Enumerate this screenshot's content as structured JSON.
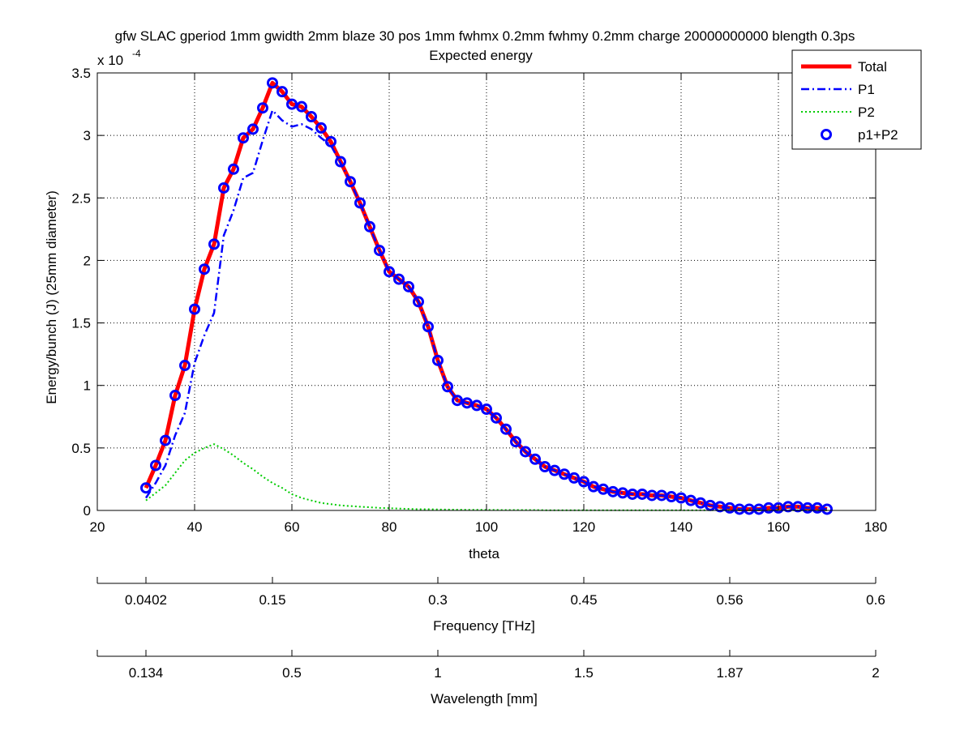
{
  "chart_data": {
    "type": "line",
    "title": "gfw SLAC gperiod 1mm gwidth 2mm blaze 30 pos 1mm fwhmx 0.2mm fwhmy 0.2mm charge 20000000000 blength 0.3ps",
    "subtitle": "Expected energy",
    "xlabel": "theta",
    "ylabel": "Energy/bunch (J) (25mm diameter)",
    "y_multiplier_base": "x 10",
    "y_multiplier_exponent": "-4",
    "xlim": [
      20,
      180
    ],
    "ylim": [
      0,
      3.5
    ],
    "xticks": [
      "20",
      "40",
      "60",
      "80",
      "100",
      "120",
      "140",
      "160",
      "180"
    ],
    "yticks": [
      "0",
      "0.5",
      "1",
      "1.5",
      "2",
      "2.5",
      "3",
      "3.5"
    ],
    "grid": true,
    "legend_position": "top-right",
    "colors": {
      "total": "#ff0000",
      "p1": "#0000ff",
      "p2": "#00cc00",
      "p1p2": "#0000ff",
      "axes": "#000000",
      "grid": "#000000"
    },
    "x": [
      30,
      32,
      34,
      36,
      38,
      40,
      42,
      44,
      46,
      48,
      50,
      52,
      54,
      56,
      58,
      60,
      62,
      64,
      66,
      68,
      70,
      72,
      74,
      76,
      78,
      80,
      82,
      84,
      86,
      88,
      90,
      92,
      94,
      96,
      98,
      100,
      102,
      104,
      106,
      108,
      110,
      112,
      114,
      116,
      118,
      120,
      122,
      124,
      126,
      128,
      130,
      132,
      134,
      136,
      138,
      140,
      142,
      144,
      146,
      148,
      150,
      152,
      154,
      156,
      158,
      160,
      162,
      164,
      166,
      168,
      170
    ],
    "series": [
      {
        "name": "Total",
        "style": "solid",
        "values": [
          0.18,
          0.36,
          0.56,
          0.92,
          1.16,
          1.61,
          1.93,
          2.13,
          2.58,
          2.73,
          2.98,
          3.05,
          3.22,
          3.42,
          3.35,
          3.25,
          3.23,
          3.15,
          3.06,
          2.95,
          2.79,
          2.63,
          2.46,
          2.27,
          2.08,
          1.91,
          1.85,
          1.79,
          1.67,
          1.47,
          1.2,
          0.99,
          0.88,
          0.86,
          0.84,
          0.81,
          0.74,
          0.65,
          0.55,
          0.47,
          0.41,
          0.35,
          0.32,
          0.29,
          0.26,
          0.23,
          0.19,
          0.17,
          0.15,
          0.14,
          0.13,
          0.13,
          0.12,
          0.12,
          0.11,
          0.1,
          0.08,
          0.06,
          0.04,
          0.03,
          0.02,
          0.01,
          0.01,
          0.01,
          0.02,
          0.02,
          0.03,
          0.03,
          0.02,
          0.02,
          0.01
        ]
      },
      {
        "name": "P1",
        "style": "dashdot",
        "values": [
          0.1,
          0.22,
          0.36,
          0.6,
          0.78,
          1.18,
          1.4,
          1.58,
          2.2,
          2.4,
          2.66,
          2.7,
          2.96,
          3.2,
          3.12,
          3.07,
          3.09,
          3.05,
          2.98,
          2.92,
          2.78,
          2.63,
          2.46,
          2.27,
          2.08,
          1.91,
          1.85,
          1.79,
          1.67,
          1.47,
          1.2,
          0.99,
          0.88,
          0.86,
          0.84,
          0.81,
          0.74,
          0.65,
          0.55,
          0.47,
          0.41,
          0.35,
          0.32,
          0.29,
          0.26,
          0.23,
          0.19,
          0.17,
          0.15,
          0.14,
          0.13,
          0.13,
          0.12,
          0.12,
          0.11,
          0.1,
          0.08,
          0.06,
          0.04,
          0.03,
          0.02,
          0.01,
          0.01,
          0.01,
          0.02,
          0.02,
          0.03,
          0.03,
          0.02,
          0.02,
          0.01
        ]
      },
      {
        "name": "P2",
        "style": "dotted",
        "values": [
          0.08,
          0.14,
          0.2,
          0.3,
          0.4,
          0.46,
          0.5,
          0.53,
          0.49,
          0.44,
          0.38,
          0.33,
          0.27,
          0.22,
          0.18,
          0.13,
          0.1,
          0.08,
          0.06,
          0.05,
          0.04,
          0.035,
          0.03,
          0.025,
          0.02,
          0.018,
          0.015,
          0.012,
          0.01,
          0.01,
          0.008,
          0.007,
          0.006,
          0.005,
          0.005,
          0.004,
          0.004,
          0.003,
          0.003,
          0.003,
          0.003,
          0.002,
          0.002,
          0.002,
          0.002,
          0.002,
          0.002,
          0.002,
          0.002,
          0.002,
          0.002,
          0.002,
          0.002,
          0.002,
          0.002,
          0.002,
          0.002,
          0.002,
          0.001,
          0.001,
          0.001,
          0.001,
          0.001,
          0.001,
          0.001,
          0.001,
          0.001,
          0.001,
          0.001,
          0.001,
          0.001
        ]
      },
      {
        "name": "p1+P2",
        "style": "circles",
        "values": [
          0.18,
          0.36,
          0.56,
          0.92,
          1.16,
          1.61,
          1.93,
          2.13,
          2.58,
          2.73,
          2.98,
          3.05,
          3.22,
          3.42,
          3.35,
          3.25,
          3.23,
          3.15,
          3.06,
          2.95,
          2.79,
          2.63,
          2.46,
          2.27,
          2.08,
          1.91,
          1.85,
          1.79,
          1.67,
          1.47,
          1.2,
          0.99,
          0.88,
          0.86,
          0.84,
          0.81,
          0.74,
          0.65,
          0.55,
          0.47,
          0.41,
          0.35,
          0.32,
          0.29,
          0.26,
          0.23,
          0.19,
          0.17,
          0.15,
          0.14,
          0.13,
          0.13,
          0.12,
          0.12,
          0.11,
          0.1,
          0.08,
          0.06,
          0.04,
          0.03,
          0.02,
          0.01,
          0.01,
          0.01,
          0.02,
          0.02,
          0.03,
          0.03,
          0.02,
          0.02,
          0.01
        ]
      }
    ],
    "secondary_axes": [
      {
        "label": "Frequency [THz]",
        "ticks": [
          {
            "theta": 30,
            "text": "0.0402"
          },
          {
            "theta": 56,
            "text": "0.15"
          },
          {
            "theta": 90,
            "text": "0.3"
          },
          {
            "theta": 120,
            "text": "0.45"
          },
          {
            "theta": 150,
            "text": "0.56"
          },
          {
            "theta": 180,
            "text": "0.6"
          }
        ]
      },
      {
        "label": "Wavelength [mm]",
        "ticks": [
          {
            "theta": 30,
            "text": "0.134"
          },
          {
            "theta": 60,
            "text": "0.5"
          },
          {
            "theta": 90,
            "text": "1"
          },
          {
            "theta": 120,
            "text": "1.5"
          },
          {
            "theta": 150,
            "text": "1.87"
          },
          {
            "theta": 180,
            "text": "2"
          }
        ]
      }
    ]
  }
}
